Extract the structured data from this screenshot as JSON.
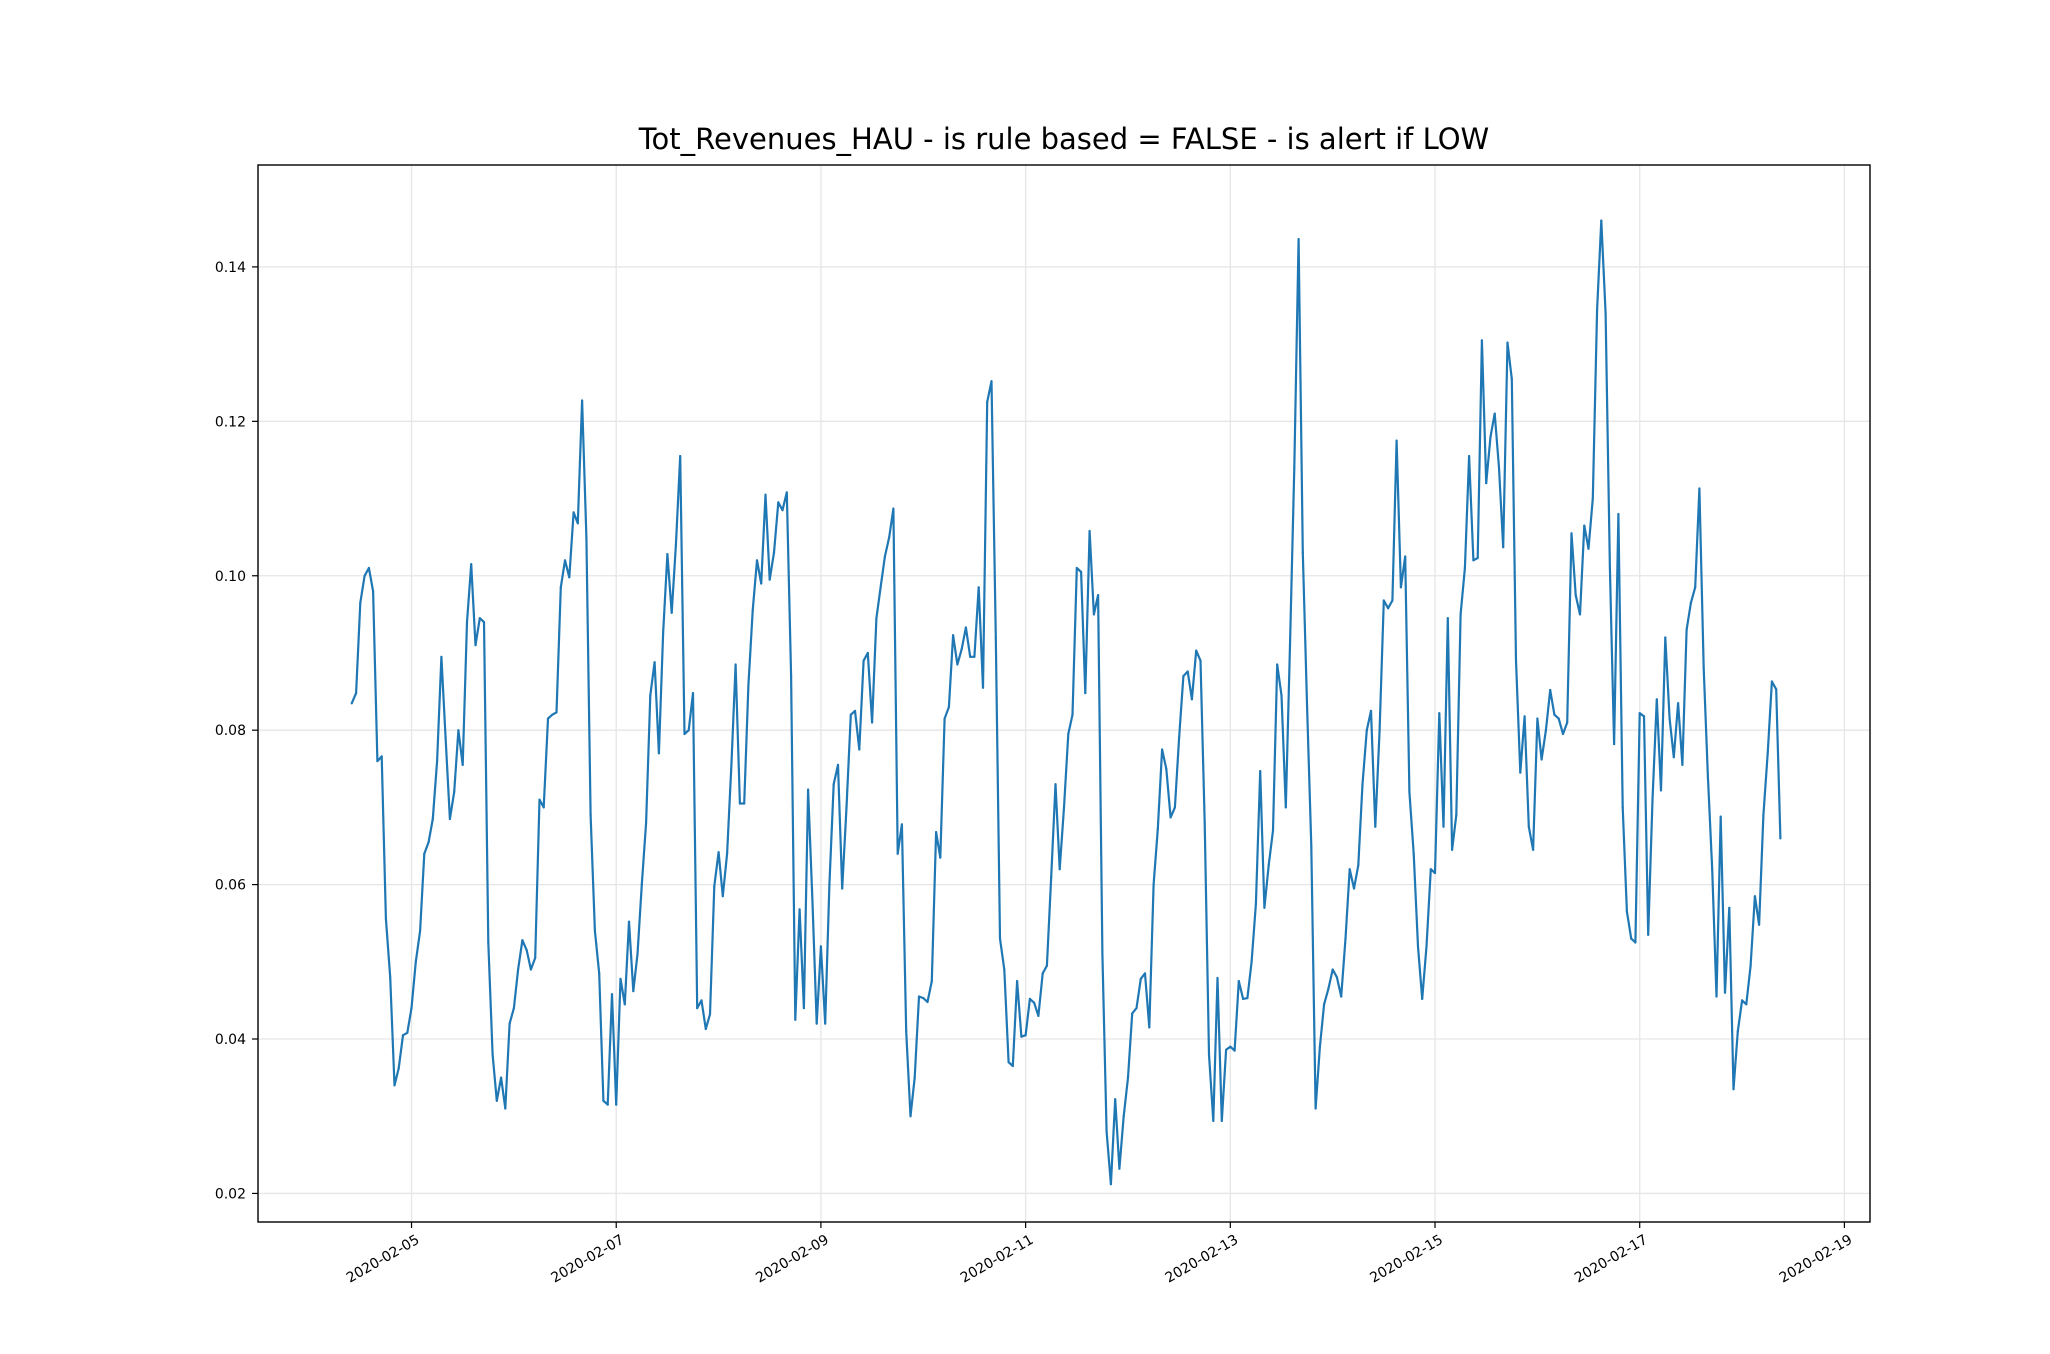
{
  "chart_data": {
    "type": "line",
    "title": "Tot_Revenues_HAU - is rule based =  FALSE - is alert if  LOW",
    "xlabel": "",
    "ylabel": "",
    "grid": true,
    "xlim": [
      "2020-02-03T12:00",
      "2020-02-19T06:00"
    ],
    "ylim": [
      0.0163,
      0.1532
    ],
    "x_ticks": [
      "2020-02-05",
      "2020-02-07",
      "2020-02-09",
      "2020-02-11",
      "2020-02-13",
      "2020-02-15",
      "2020-02-17",
      "2020-02-19"
    ],
    "y_ticks": [
      "0.02",
      "0.04",
      "0.06",
      "0.08",
      "0.10",
      "0.12",
      "0.14"
    ],
    "series": [
      {
        "color": "#1f77b4",
        "x": [
          "2020-02-04T10:00",
          "2020-02-04T11:00",
          "2020-02-04T12:00",
          "2020-02-04T13:00",
          "2020-02-04T14:00",
          "2020-02-04T15:00",
          "2020-02-04T16:00",
          "2020-02-04T17:00",
          "2020-02-04T18:00",
          "2020-02-04T19:00",
          "2020-02-04T20:00",
          "2020-02-04T21:00",
          "2020-02-04T22:00",
          "2020-02-04T23:00",
          "2020-02-05T00:00",
          "2020-02-05T01:00",
          "2020-02-05T02:00",
          "2020-02-05T03:00",
          "2020-02-05T04:00",
          "2020-02-05T05:00",
          "2020-02-05T06:00",
          "2020-02-05T07:00",
          "2020-02-05T08:00",
          "2020-02-05T09:00",
          "2020-02-05T10:00",
          "2020-02-05T11:00",
          "2020-02-05T12:00",
          "2020-02-05T13:00",
          "2020-02-05T14:00",
          "2020-02-05T15:00",
          "2020-02-05T16:00",
          "2020-02-05T17:00",
          "2020-02-05T18:00",
          "2020-02-05T19:00",
          "2020-02-05T20:00",
          "2020-02-05T21:00",
          "2020-02-05T22:00",
          "2020-02-05T23:00",
          "2020-02-06T00:00",
          "2020-02-06T01:00",
          "2020-02-06T02:00",
          "2020-02-06T03:00",
          "2020-02-06T04:00",
          "2020-02-06T05:00",
          "2020-02-06T06:00",
          "2020-02-06T07:00",
          "2020-02-06T08:00",
          "2020-02-06T09:00",
          "2020-02-06T10:00",
          "2020-02-06T11:00",
          "2020-02-06T12:00",
          "2020-02-06T13:00",
          "2020-02-06T14:00",
          "2020-02-06T15:00",
          "2020-02-06T16:00",
          "2020-02-06T17:00",
          "2020-02-06T18:00",
          "2020-02-06T19:00",
          "2020-02-06T20:00",
          "2020-02-06T21:00",
          "2020-02-06T22:00",
          "2020-02-06T23:00",
          "2020-02-07T00:00",
          "2020-02-07T01:00",
          "2020-02-07T02:00",
          "2020-02-07T03:00",
          "2020-02-07T04:00",
          "2020-02-07T05:00",
          "2020-02-07T06:00",
          "2020-02-07T07:00",
          "2020-02-07T08:00",
          "2020-02-07T09:00",
          "2020-02-07T10:00",
          "2020-02-07T11:00",
          "2020-02-07T12:00",
          "2020-02-07T13:00",
          "2020-02-07T14:00",
          "2020-02-07T15:00",
          "2020-02-07T16:00",
          "2020-02-07T17:00",
          "2020-02-07T18:00",
          "2020-02-07T19:00",
          "2020-02-07T20:00",
          "2020-02-07T21:00",
          "2020-02-07T22:00",
          "2020-02-07T23:00",
          "2020-02-08T00:00",
          "2020-02-08T01:00",
          "2020-02-08T02:00",
          "2020-02-08T03:00",
          "2020-02-08T04:00",
          "2020-02-08T05:00",
          "2020-02-08T06:00",
          "2020-02-08T07:00",
          "2020-02-08T08:00",
          "2020-02-08T09:00",
          "2020-02-08T10:00",
          "2020-02-08T11:00",
          "2020-02-08T12:00",
          "2020-02-08T13:00",
          "2020-02-08T14:00",
          "2020-02-08T15:00",
          "2020-02-08T16:00",
          "2020-02-08T17:00",
          "2020-02-08T18:00",
          "2020-02-08T19:00",
          "2020-02-08T20:00",
          "2020-02-08T21:00",
          "2020-02-08T22:00",
          "2020-02-08T23:00",
          "2020-02-09T00:00",
          "2020-02-09T01:00",
          "2020-02-09T02:00",
          "2020-02-09T03:00",
          "2020-02-09T04:00",
          "2020-02-09T05:00",
          "2020-02-09T06:00",
          "2020-02-09T07:00",
          "2020-02-09T08:00",
          "2020-02-09T09:00",
          "2020-02-09T10:00",
          "2020-02-09T11:00",
          "2020-02-09T12:00",
          "2020-02-09T13:00",
          "2020-02-09T14:00",
          "2020-02-09T15:00",
          "2020-02-09T16:00",
          "2020-02-09T17:00",
          "2020-02-09T18:00",
          "2020-02-09T19:00",
          "2020-02-09T20:00",
          "2020-02-09T21:00",
          "2020-02-09T22:00",
          "2020-02-09T23:00",
          "2020-02-10T00:00",
          "2020-02-10T01:00",
          "2020-02-10T02:00",
          "2020-02-10T03:00",
          "2020-02-10T04:00",
          "2020-02-10T05:00",
          "2020-02-10T06:00",
          "2020-02-10T07:00",
          "2020-02-10T08:00",
          "2020-02-10T09:00",
          "2020-02-10T10:00",
          "2020-02-10T11:00",
          "2020-02-10T12:00",
          "2020-02-10T13:00",
          "2020-02-10T14:00",
          "2020-02-10T15:00",
          "2020-02-10T16:00",
          "2020-02-10T17:00",
          "2020-02-10T18:00",
          "2020-02-10T19:00",
          "2020-02-10T20:00",
          "2020-02-10T21:00",
          "2020-02-10T22:00",
          "2020-02-10T23:00",
          "2020-02-11T00:00",
          "2020-02-11T01:00",
          "2020-02-11T02:00",
          "2020-02-11T03:00",
          "2020-02-11T04:00",
          "2020-02-11T05:00",
          "2020-02-11T06:00",
          "2020-02-11T07:00",
          "2020-02-11T08:00",
          "2020-02-11T09:00",
          "2020-02-11T10:00",
          "2020-02-11T11:00",
          "2020-02-11T12:00",
          "2020-02-11T13:00",
          "2020-02-11T14:00",
          "2020-02-11T15:00",
          "2020-02-11T16:00",
          "2020-02-11T17:00",
          "2020-02-11T18:00",
          "2020-02-11T19:00",
          "2020-02-11T20:00",
          "2020-02-11T21:00",
          "2020-02-11T22:00",
          "2020-02-11T23:00",
          "2020-02-12T00:00",
          "2020-02-12T01:00",
          "2020-02-12T02:00",
          "2020-02-12T03:00",
          "2020-02-12T04:00",
          "2020-02-12T05:00",
          "2020-02-12T06:00",
          "2020-02-12T07:00",
          "2020-02-12T08:00",
          "2020-02-12T09:00",
          "2020-02-12T10:00",
          "2020-02-12T11:00",
          "2020-02-12T12:00",
          "2020-02-12T13:00",
          "2020-02-12T14:00",
          "2020-02-12T15:00",
          "2020-02-12T16:00",
          "2020-02-12T17:00",
          "2020-02-12T18:00",
          "2020-02-12T19:00",
          "2020-02-12T20:00",
          "2020-02-12T21:00",
          "2020-02-12T22:00",
          "2020-02-12T23:00",
          "2020-02-13T00:00",
          "2020-02-13T01:00",
          "2020-02-13T02:00",
          "2020-02-13T03:00",
          "2020-02-13T04:00",
          "2020-02-13T05:00",
          "2020-02-13T06:00",
          "2020-02-13T07:00",
          "2020-02-13T08:00",
          "2020-02-13T09:00",
          "2020-02-13T10:00",
          "2020-02-13T11:00",
          "2020-02-13T12:00",
          "2020-02-13T13:00",
          "2020-02-13T14:00",
          "2020-02-13T15:00",
          "2020-02-13T16:00",
          "2020-02-13T17:00",
          "2020-02-13T18:00",
          "2020-02-13T19:00",
          "2020-02-13T20:00",
          "2020-02-13T21:00",
          "2020-02-13T22:00",
          "2020-02-13T23:00",
          "2020-02-14T00:00",
          "2020-02-14T01:00",
          "2020-02-14T02:00",
          "2020-02-14T03:00",
          "2020-02-14T04:00",
          "2020-02-14T05:00",
          "2020-02-14T06:00",
          "2020-02-14T07:00",
          "2020-02-14T08:00",
          "2020-02-14T09:00",
          "2020-02-14T10:00",
          "2020-02-14T11:00",
          "2020-02-14T12:00",
          "2020-02-14T13:00",
          "2020-02-14T14:00",
          "2020-02-14T15:00",
          "2020-02-14T16:00",
          "2020-02-14T17:00",
          "2020-02-14T18:00",
          "2020-02-14T19:00",
          "2020-02-14T20:00",
          "2020-02-14T21:00",
          "2020-02-14T22:00",
          "2020-02-14T23:00",
          "2020-02-15T00:00",
          "2020-02-15T01:00",
          "2020-02-15T02:00",
          "2020-02-15T03:00",
          "2020-02-15T04:00",
          "2020-02-15T05:00",
          "2020-02-15T06:00",
          "2020-02-15T07:00",
          "2020-02-15T08:00",
          "2020-02-15T09:00",
          "2020-02-15T10:00",
          "2020-02-15T11:00",
          "2020-02-15T12:00",
          "2020-02-15T13:00",
          "2020-02-15T14:00",
          "2020-02-15T15:00",
          "2020-02-15T16:00",
          "2020-02-15T17:00",
          "2020-02-15T18:00",
          "2020-02-15T19:00",
          "2020-02-15T20:00",
          "2020-02-15T21:00",
          "2020-02-15T22:00",
          "2020-02-15T23:00",
          "2020-02-16T00:00",
          "2020-02-16T01:00",
          "2020-02-16T02:00",
          "2020-02-16T03:00",
          "2020-02-16T04:00",
          "2020-02-16T05:00",
          "2020-02-16T06:00",
          "2020-02-16T07:00",
          "2020-02-16T08:00",
          "2020-02-16T09:00",
          "2020-02-16T10:00",
          "2020-02-16T11:00",
          "2020-02-16T12:00",
          "2020-02-16T13:00",
          "2020-02-16T14:00",
          "2020-02-16T15:00",
          "2020-02-16T16:00",
          "2020-02-16T17:00",
          "2020-02-16T18:00",
          "2020-02-16T19:00",
          "2020-02-16T20:00",
          "2020-02-16T21:00",
          "2020-02-16T22:00",
          "2020-02-16T23:00",
          "2020-02-17T00:00",
          "2020-02-17T01:00",
          "2020-02-17T02:00",
          "2020-02-17T03:00",
          "2020-02-17T04:00",
          "2020-02-17T05:00",
          "2020-02-17T06:00",
          "2020-02-17T07:00",
          "2020-02-17T08:00",
          "2020-02-17T09:00",
          "2020-02-17T10:00",
          "2020-02-17T11:00",
          "2020-02-17T12:00",
          "2020-02-17T13:00",
          "2020-02-17T14:00",
          "2020-02-17T15:00",
          "2020-02-17T16:00",
          "2020-02-17T17:00",
          "2020-02-17T18:00",
          "2020-02-17T19:00",
          "2020-02-17T20:00",
          "2020-02-17T21:00",
          "2020-02-17T22:00",
          "2020-02-17T23:00",
          "2020-02-18T00:00",
          "2020-02-18T01:00",
          "2020-02-18T02:00",
          "2020-02-18T03:00",
          "2020-02-18T04:00",
          "2020-02-18T05:00",
          "2020-02-18T06:00",
          "2020-02-18T07:00",
          "2020-02-18T08:00",
          "2020-02-18T09:00"
        ],
        "y": [
          0.0835,
          0.0848,
          0.0965,
          0.1,
          0.101,
          0.098,
          0.076,
          0.0766,
          0.0556,
          0.048,
          0.034,
          0.0362,
          0.0405,
          0.0408,
          0.044,
          0.05,
          0.054,
          0.064,
          0.0655,
          0.0685,
          0.076,
          0.0895,
          0.079,
          0.0685,
          0.072,
          0.08,
          0.0755,
          0.094,
          0.1015,
          0.091,
          0.0945,
          0.094,
          0.0525,
          0.038,
          0.032,
          0.035,
          0.031,
          0.042,
          0.044,
          0.049,
          0.0528,
          0.0515,
          0.049,
          0.0505,
          0.071,
          0.07,
          0.0815,
          0.082,
          0.0823,
          0.0985,
          0.102,
          0.0998,
          0.1082,
          0.1068,
          0.1227,
          0.105,
          0.069,
          0.054,
          0.0485,
          0.032,
          0.0315,
          0.0458,
          0.0315,
          0.0478,
          0.0445,
          0.0552,
          0.0462,
          0.051,
          0.06,
          0.068,
          0.0845,
          0.0888,
          0.077,
          0.0925,
          0.1028,
          0.0952,
          0.104,
          0.1155,
          0.0795,
          0.08,
          0.0848,
          0.044,
          0.045,
          0.0413,
          0.0432,
          0.0598,
          0.0642,
          0.0585,
          0.064,
          0.0755,
          0.0885,
          0.0705,
          0.0705,
          0.0858,
          0.0955,
          0.102,
          0.099,
          0.1105,
          0.0995,
          0.103,
          0.1095,
          0.1085,
          0.1108,
          0.087,
          0.0425,
          0.0568,
          0.044,
          0.0723,
          0.058,
          0.042,
          0.052,
          0.042,
          0.06,
          0.073,
          0.0755,
          0.0595,
          0.07,
          0.082,
          0.0825,
          0.0775,
          0.089,
          0.09,
          0.081,
          0.0945,
          0.0985,
          0.1025,
          0.105,
          0.1087,
          0.064,
          0.0678,
          0.041,
          0.03,
          0.035,
          0.0455,
          0.0453,
          0.0448,
          0.0475,
          0.0668,
          0.0635,
          0.0815,
          0.083,
          0.0923,
          0.0885,
          0.0905,
          0.0933,
          0.0895,
          0.0895,
          0.0985,
          0.0855,
          0.1225,
          0.1252,
          0.092,
          0.053,
          0.049,
          0.037,
          0.0365,
          0.0475,
          0.0403,
          0.0405,
          0.0452,
          0.0447,
          0.043,
          0.0485,
          0.0495,
          0.061,
          0.073,
          0.062,
          0.07,
          0.0795,
          0.082,
          0.101,
          0.1005,
          0.0848,
          0.1058,
          0.095,
          0.0975,
          0.051,
          0.028,
          0.0212,
          0.0322,
          0.0232,
          0.03,
          0.035,
          0.0433,
          0.044,
          0.0478,
          0.0485,
          0.0415,
          0.06,
          0.0672,
          0.0775,
          0.075,
          0.0687,
          0.07,
          0.079,
          0.087,
          0.0876,
          0.084,
          0.0903,
          0.089,
          0.068,
          0.038,
          0.0294,
          0.0479,
          0.0294,
          0.0386,
          0.039,
          0.0385,
          0.0475,
          0.0452,
          0.0453,
          0.05,
          0.0575,
          0.0747,
          0.057,
          0.0625,
          0.067,
          0.0885,
          0.0845,
          0.07,
          0.091,
          0.114,
          0.1436,
          0.103,
          0.083,
          0.065,
          0.031,
          0.039,
          0.0445,
          0.0465,
          0.049,
          0.048,
          0.0455,
          0.053,
          0.062,
          0.0595,
          0.0625,
          0.073,
          0.08,
          0.0825,
          0.0675,
          0.08,
          0.0968,
          0.0958,
          0.0968,
          0.1175,
          0.0985,
          0.1025,
          0.072,
          0.064,
          0.052,
          0.0452,
          0.052,
          0.062,
          0.0615,
          0.0822,
          0.0675,
          0.0945,
          0.0645,
          0.069,
          0.095,
          0.101,
          0.1155,
          0.102,
          0.1023,
          0.1305,
          0.112,
          0.118,
          0.121,
          0.114,
          0.1037,
          0.1302,
          0.1255,
          0.089,
          0.0745,
          0.0818,
          0.0675,
          0.0645,
          0.0815,
          0.0762,
          0.08,
          0.0852,
          0.082,
          0.0815,
          0.0795,
          0.081,
          0.1055,
          0.0975,
          0.095,
          0.1065,
          0.1035,
          0.11,
          0.1345,
          0.146,
          0.134,
          0.101,
          0.0782,
          0.108,
          0.07,
          0.0565,
          0.053,
          0.0525,
          0.0822,
          0.0818,
          0.0535,
          0.071,
          0.084,
          0.0722,
          0.092,
          0.0815,
          0.0765,
          0.0835,
          0.0755,
          0.093,
          0.0965,
          0.0985,
          0.1113,
          0.088,
          0.074,
          0.062,
          0.0455,
          0.0688,
          0.046,
          0.057,
          0.0335,
          0.041,
          0.045,
          0.0445,
          0.0495,
          0.0585,
          0.0548,
          0.069,
          0.077,
          0.0863,
          0.0853,
          0.066
        ]
      }
    ]
  }
}
